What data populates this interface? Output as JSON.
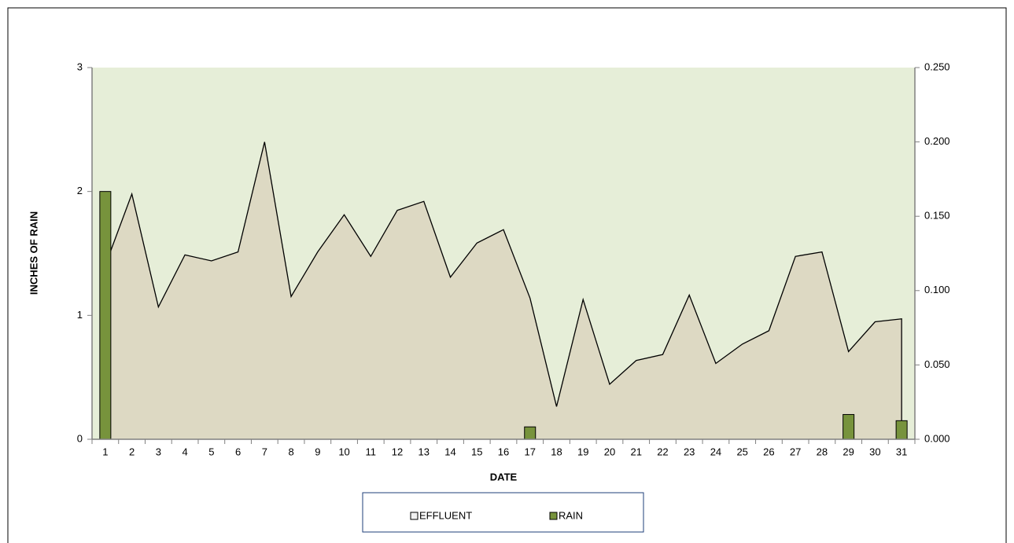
{
  "chart_data": {
    "type": "area_bar",
    "y_label": "INCHES OF RAIN",
    "x_label": "DATE",
    "categories": [
      1,
      2,
      3,
      4,
      5,
      6,
      7,
      8,
      9,
      10,
      11,
      12,
      13,
      14,
      15,
      16,
      17,
      18,
      19,
      20,
      21,
      22,
      23,
      24,
      25,
      26,
      27,
      28,
      29,
      30,
      31
    ],
    "series": [
      {
        "name": "EFFLUENT",
        "color": "#ddd9c3",
        "axis": "y2",
        "values": [
          0.117,
          0.165,
          0.089,
          0.124,
          0.12,
          0.126,
          0.2,
          0.096,
          0.126,
          0.151,
          0.123,
          0.154,
          0.16,
          0.109,
          0.132,
          0.141,
          0.095,
          0.022,
          0.094,
          0.037,
          0.053,
          0.057,
          0.097,
          0.051,
          0.064,
          0.073,
          0.123,
          0.126,
          0.059,
          0.079,
          0.081
        ]
      },
      {
        "name": "RAIN",
        "color": "#77933c",
        "values": [
          2,
          0,
          0,
          0,
          0,
          0,
          0,
          0,
          0,
          0,
          0,
          0,
          0,
          0,
          0,
          0,
          0.1,
          0,
          0,
          0,
          0,
          0,
          0,
          0,
          0,
          0,
          0,
          0,
          0.2,
          0,
          0.15
        ]
      }
    ],
    "ylim": [
      0,
      3
    ],
    "yticks": [
      0,
      1,
      2,
      3
    ],
    "y2lim": [
      0,
      0.25
    ],
    "y2ticks": [
      {
        "value": 0,
        "label": "0.000"
      },
      {
        "value": 0.05,
        "label": "0.050"
      },
      {
        "value": 0.1,
        "label": "0.100"
      },
      {
        "value": 0.15,
        "label": "0.150"
      },
      {
        "value": 0.2,
        "label": "0.200"
      },
      {
        "value": 0.25,
        "label": "0.250"
      }
    ],
    "legend": "bottom"
  }
}
